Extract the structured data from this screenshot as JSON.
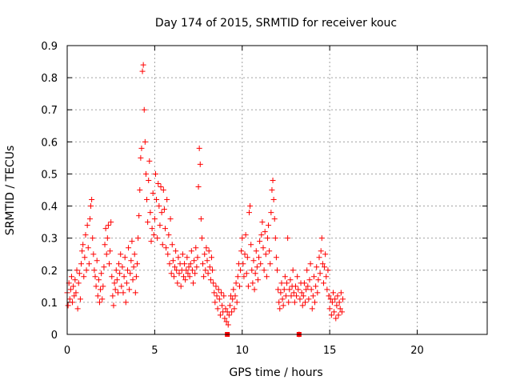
{
  "chart_data": {
    "type": "scatter",
    "title": "Day 174 of 2015, SRMTID for receiver kouc",
    "xlabel": "GPS time / hours",
    "ylabel": "SRMTID / TECUs",
    "xlim": [
      0,
      24
    ],
    "ylim": [
      0,
      0.9
    ],
    "xticks": [
      0,
      5,
      10,
      15,
      20
    ],
    "xtick_labels": [
      "0",
      "5",
      "10",
      "15",
      "20"
    ],
    "yticks": [
      0,
      0.1,
      0.2,
      0.3,
      0.4,
      0.5,
      0.6,
      0.7,
      0.8,
      0.9
    ],
    "ytick_labels": [
      "0",
      "0.1",
      "0.2",
      "0.3",
      "0.4",
      "0.5",
      "0.6",
      "0.7",
      "0.8",
      "0.9"
    ],
    "grid": true,
    "marker": "+",
    "series": [
      {
        "name": "SRMTID",
        "color": "#ff0000",
        "points": [
          [
            0.0,
            0.13
          ],
          [
            0.05,
            0.09
          ],
          [
            0.1,
            0.16
          ],
          [
            0.15,
            0.11
          ],
          [
            0.2,
            0.14
          ],
          [
            0.25,
            0.18
          ],
          [
            0.3,
            0.1
          ],
          [
            0.35,
            0.15
          ],
          [
            0.4,
            0.12
          ],
          [
            0.45,
            0.17
          ],
          [
            0.5,
            0.13
          ],
          [
            0.55,
            0.2
          ],
          [
            0.6,
            0.08
          ],
          [
            0.65,
            0.16
          ],
          [
            0.7,
            0.19
          ],
          [
            0.75,
            0.11
          ],
          [
            0.8,
            0.22
          ],
          [
            0.85,
            0.26
          ],
          [
            0.9,
            0.28
          ],
          [
            0.95,
            0.18
          ],
          [
            1.0,
            0.24
          ],
          [
            1.05,
            0.31
          ],
          [
            1.1,
            0.2
          ],
          [
            1.15,
            0.34
          ],
          [
            1.2,
            0.27
          ],
          [
            1.25,
            0.22
          ],
          [
            1.3,
            0.36
          ],
          [
            1.35,
            0.4
          ],
          [
            1.4,
            0.42
          ],
          [
            1.45,
            0.3
          ],
          [
            1.5,
            0.25
          ],
          [
            1.55,
            0.2
          ],
          [
            1.6,
            0.18
          ],
          [
            1.65,
            0.15
          ],
          [
            1.7,
            0.23
          ],
          [
            1.75,
            0.12
          ],
          [
            1.8,
            0.17
          ],
          [
            1.85,
            0.1
          ],
          [
            1.9,
            0.14
          ],
          [
            1.95,
            0.19
          ],
          [
            2.0,
            0.11
          ],
          [
            2.05,
            0.15
          ],
          [
            2.1,
            0.21
          ],
          [
            2.15,
            0.28
          ],
          [
            2.2,
            0.33
          ],
          [
            2.25,
            0.25
          ],
          [
            2.3,
            0.3
          ],
          [
            2.35,
            0.34
          ],
          [
            2.4,
            0.22
          ],
          [
            2.45,
            0.26
          ],
          [
            2.5,
            0.35
          ],
          [
            2.55,
            0.18
          ],
          [
            2.6,
            0.12
          ],
          [
            2.65,
            0.09
          ],
          [
            2.7,
            0.16
          ],
          [
            2.75,
            0.14
          ],
          [
            2.8,
            0.2
          ],
          [
            2.85,
            0.17
          ],
          [
            2.9,
            0.13
          ],
          [
            2.95,
            0.22
          ],
          [
            3.0,
            0.19
          ],
          [
            3.05,
            0.25
          ],
          [
            3.1,
            0.15
          ],
          [
            3.15,
            0.21
          ],
          [
            3.2,
            0.13
          ],
          [
            3.25,
            0.18
          ],
          [
            3.3,
            0.24
          ],
          [
            3.35,
            0.1
          ],
          [
            3.4,
            0.16
          ],
          [
            3.45,
            0.2
          ],
          [
            3.5,
            0.27
          ],
          [
            3.55,
            0.14
          ],
          [
            3.6,
            0.19
          ],
          [
            3.65,
            0.23
          ],
          [
            3.7,
            0.29
          ],
          [
            3.75,
            0.17
          ],
          [
            3.8,
            0.21
          ],
          [
            3.85,
            0.25
          ],
          [
            3.9,
            0.13
          ],
          [
            3.95,
            0.18
          ],
          [
            4.0,
            0.22
          ],
          [
            4.05,
            0.3
          ],
          [
            4.1,
            0.37
          ],
          [
            4.15,
            0.45
          ],
          [
            4.2,
            0.55
          ],
          [
            4.25,
            0.58
          ],
          [
            4.3,
            0.82
          ],
          [
            4.35,
            0.84
          ],
          [
            4.4,
            0.7
          ],
          [
            4.45,
            0.6
          ],
          [
            4.5,
            0.5
          ],
          [
            4.55,
            0.42
          ],
          [
            4.6,
            0.35
          ],
          [
            4.65,
            0.48
          ],
          [
            4.7,
            0.54
          ],
          [
            4.75,
            0.38
          ],
          [
            4.8,
            0.29
          ],
          [
            4.85,
            0.33
          ],
          [
            4.9,
            0.44
          ],
          [
            4.95,
            0.31
          ],
          [
            5.0,
            0.36
          ],
          [
            5.05,
            0.5
          ],
          [
            5.1,
            0.42
          ],
          [
            5.15,
            0.3
          ],
          [
            5.2,
            0.47
          ],
          [
            5.25,
            0.4
          ],
          [
            5.3,
            0.34
          ],
          [
            5.35,
            0.46
          ],
          [
            5.4,
            0.38
          ],
          [
            5.45,
            0.28
          ],
          [
            5.5,
            0.45
          ],
          [
            5.55,
            0.39
          ],
          [
            5.6,
            0.33
          ],
          [
            5.65,
            0.27
          ],
          [
            5.7,
            0.42
          ],
          [
            5.75,
            0.25
          ],
          [
            5.8,
            0.31
          ],
          [
            5.85,
            0.22
          ],
          [
            5.9,
            0.36
          ],
          [
            5.95,
            0.19
          ],
          [
            6.0,
            0.28
          ],
          [
            6.05,
            0.23
          ],
          [
            6.1,
            0.18
          ],
          [
            6.15,
            0.21
          ],
          [
            6.2,
            0.26
          ],
          [
            6.25,
            0.2
          ],
          [
            6.3,
            0.16
          ],
          [
            6.35,
            0.24
          ],
          [
            6.4,
            0.19
          ],
          [
            6.45,
            0.22
          ],
          [
            6.5,
            0.15
          ],
          [
            6.55,
            0.2
          ],
          [
            6.6,
            0.25
          ],
          [
            6.65,
            0.18
          ],
          [
            6.7,
            0.22
          ],
          [
            6.75,
            0.17
          ],
          [
            6.8,
            0.2
          ],
          [
            6.85,
            0.24
          ],
          [
            6.9,
            0.19
          ],
          [
            6.95,
            0.21
          ],
          [
            7.0,
            0.18
          ],
          [
            7.05,
            0.22
          ],
          [
            7.1,
            0.26
          ],
          [
            7.15,
            0.2
          ],
          [
            7.2,
            0.16
          ],
          [
            7.25,
            0.23
          ],
          [
            7.3,
            0.19
          ],
          [
            7.35,
            0.27
          ],
          [
            7.4,
            0.21
          ],
          [
            7.45,
            0.24
          ],
          [
            7.5,
            0.46
          ],
          [
            7.55,
            0.58
          ],
          [
            7.6,
            0.53
          ],
          [
            7.65,
            0.36
          ],
          [
            7.7,
            0.3
          ],
          [
            7.75,
            0.22
          ],
          [
            7.8,
            0.18
          ],
          [
            7.85,
            0.25
          ],
          [
            7.9,
            0.2
          ],
          [
            7.95,
            0.27
          ],
          [
            8.0,
            0.23
          ],
          [
            8.05,
            0.19
          ],
          [
            8.1,
            0.26
          ],
          [
            8.15,
            0.21
          ],
          [
            8.2,
            0.17
          ],
          [
            8.25,
            0.24
          ],
          [
            8.3,
            0.2
          ],
          [
            8.35,
            0.16
          ],
          [
            8.4,
            0.13
          ],
          [
            8.45,
            0.1
          ],
          [
            8.5,
            0.15
          ],
          [
            8.55,
            0.12
          ],
          [
            8.6,
            0.08
          ],
          [
            8.65,
            0.14
          ],
          [
            8.7,
            0.11
          ],
          [
            8.75,
            0.06
          ],
          [
            8.8,
            0.13
          ],
          [
            8.85,
            0.09
          ],
          [
            8.9,
            0.07
          ],
          [
            8.95,
            0.12
          ],
          [
            9.0,
            0.05
          ],
          [
            9.05,
            0.08
          ],
          [
            9.1,
            0.04
          ],
          [
            9.15,
            0.07
          ],
          [
            9.2,
            0.03
          ],
          [
            9.25,
            0.06
          ],
          [
            9.3,
            0.09
          ],
          [
            9.35,
            0.12
          ],
          [
            9.4,
            0.07
          ],
          [
            9.45,
            0.11
          ],
          [
            9.5,
            0.14
          ],
          [
            9.55,
            0.08
          ],
          [
            9.6,
            0.12
          ],
          [
            9.65,
            0.16
          ],
          [
            9.7,
            0.1
          ],
          [
            9.75,
            0.18
          ],
          [
            9.8,
            0.22
          ],
          [
            9.85,
            0.15
          ],
          [
            9.9,
            0.2
          ],
          [
            9.95,
            0.26
          ],
          [
            10.0,
            0.3
          ],
          [
            10.05,
            0.22
          ],
          [
            10.1,
            0.18
          ],
          [
            10.15,
            0.25
          ],
          [
            10.2,
            0.31
          ],
          [
            10.25,
            0.19
          ],
          [
            10.3,
            0.24
          ],
          [
            10.35,
            0.15
          ],
          [
            10.4,
            0.38
          ],
          [
            10.45,
            0.4
          ],
          [
            10.5,
            0.28
          ],
          [
            10.55,
            0.2
          ],
          [
            10.6,
            0.16
          ],
          [
            10.65,
            0.23
          ],
          [
            10.7,
            0.14
          ],
          [
            10.75,
            0.19
          ],
          [
            10.8,
            0.26
          ],
          [
            10.85,
            0.21
          ],
          [
            10.9,
            0.17
          ],
          [
            10.95,
            0.24
          ],
          [
            11.0,
            0.29
          ],
          [
            11.05,
            0.22
          ],
          [
            11.1,
            0.31
          ],
          [
            11.15,
            0.35
          ],
          [
            11.2,
            0.27
          ],
          [
            11.25,
            0.2
          ],
          [
            11.3,
            0.32
          ],
          [
            11.35,
            0.25
          ],
          [
            11.4,
            0.18
          ],
          [
            11.45,
            0.3
          ],
          [
            11.5,
            0.34
          ],
          [
            11.55,
            0.26
          ],
          [
            11.6,
            0.22
          ],
          [
            11.65,
            0.38
          ],
          [
            11.7,
            0.45
          ],
          [
            11.75,
            0.48
          ],
          [
            11.8,
            0.42
          ],
          [
            11.85,
            0.36
          ],
          [
            11.9,
            0.3
          ],
          [
            11.95,
            0.24
          ],
          [
            12.0,
            0.2
          ],
          [
            12.05,
            0.14
          ],
          [
            12.1,
            0.1
          ],
          [
            12.15,
            0.08
          ],
          [
            12.2,
            0.13
          ],
          [
            12.25,
            0.16
          ],
          [
            12.3,
            0.11
          ],
          [
            12.35,
            0.09
          ],
          [
            12.4,
            0.14
          ],
          [
            12.45,
            0.18
          ],
          [
            12.5,
            0.12
          ],
          [
            12.55,
            0.16
          ],
          [
            12.6,
            0.3
          ],
          [
            12.65,
            0.1
          ],
          [
            12.7,
            0.14
          ],
          [
            12.75,
            0.17
          ],
          [
            12.8,
            0.12
          ],
          [
            12.85,
            0.15
          ],
          [
            12.9,
            0.2
          ],
          [
            12.95,
            0.13
          ],
          [
            13.0,
            0.1
          ],
          [
            13.05,
            0.15
          ],
          [
            13.1,
            0.12
          ],
          [
            13.15,
            0.18
          ],
          [
            13.2,
            0.14
          ],
          [
            13.25,
            0.0
          ],
          [
            13.3,
            0.11
          ],
          [
            13.35,
            0.16
          ],
          [
            13.4,
            0.13
          ],
          [
            13.45,
            0.09
          ],
          [
            13.5,
            0.12
          ],
          [
            13.55,
            0.16
          ],
          [
            13.6,
            0.1
          ],
          [
            13.65,
            0.14
          ],
          [
            13.7,
            0.2
          ],
          [
            13.75,
            0.15
          ],
          [
            13.8,
            0.11
          ],
          [
            13.85,
            0.17
          ],
          [
            13.9,
            0.22
          ],
          [
            13.95,
            0.14
          ],
          [
            14.0,
            0.08
          ],
          [
            14.05,
            0.12
          ],
          [
            14.1,
            0.18
          ],
          [
            14.15,
            0.1
          ],
          [
            14.2,
            0.15
          ],
          [
            14.25,
            0.21
          ],
          [
            14.3,
            0.13
          ],
          [
            14.35,
            0.17
          ],
          [
            14.4,
            0.24
          ],
          [
            14.45,
            0.19
          ],
          [
            14.5,
            0.26
          ],
          [
            14.55,
            0.3
          ],
          [
            14.6,
            0.22
          ],
          [
            14.65,
            0.16
          ],
          [
            14.7,
            0.21
          ],
          [
            14.75,
            0.25
          ],
          [
            14.8,
            0.18
          ],
          [
            14.85,
            0.14
          ],
          [
            14.9,
            0.2
          ],
          [
            14.95,
            0.12
          ],
          [
            15.0,
            0.08
          ],
          [
            15.05,
            0.11
          ],
          [
            15.1,
            0.06
          ],
          [
            15.15,
            0.1
          ],
          [
            15.2,
            0.13
          ],
          [
            15.25,
            0.07
          ],
          [
            15.3,
            0.11
          ],
          [
            15.35,
            0.05
          ],
          [
            15.4,
            0.09
          ],
          [
            15.45,
            0.12
          ],
          [
            15.5,
            0.06
          ],
          [
            15.55,
            0.1
          ],
          [
            15.6,
            0.08
          ],
          [
            15.65,
            0.13
          ],
          [
            15.7,
            0.07
          ],
          [
            15.75,
            0.11
          ]
        ]
      }
    ],
    "square_markers": [
      [
        9.15,
        0.0
      ],
      [
        13.25,
        0.0
      ]
    ]
  }
}
